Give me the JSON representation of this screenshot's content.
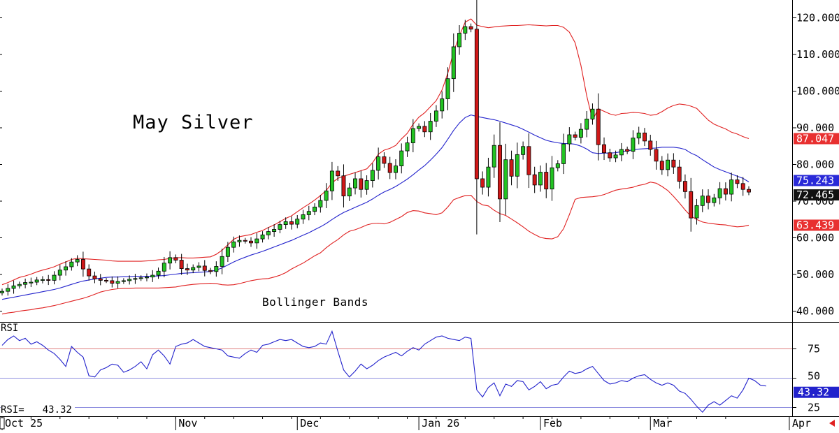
{
  "chart_data": [
    {
      "type": "candlestick",
      "title": "May Silver",
      "overlay_label": "Bollinger Bands",
      "ylim": [
        37,
        124
      ],
      "y_ticks": [
        "40.000",
        "50.000",
        "60.000",
        "70.000",
        "80.000",
        "90.000",
        "100.000",
        "110.000",
        "120.000"
      ],
      "x_ticks": [
        "Oct 25",
        "Nov",
        "Dec",
        "Jan 26",
        "Feb",
        "Mar",
        "Apr"
      ],
      "x_tick_index": [
        0,
        30,
        51,
        72,
        93,
        112,
        136
      ],
      "grid": false,
      "colors": {
        "up": "#22c322",
        "down": "#d01818",
        "upper_band": "#e02020",
        "lower_band": "#e02020",
        "middle_band": "#2222cc",
        "price_tag": "#111111"
      },
      "price_tags": {
        "upper_band": "87.047",
        "middle_band": "75.243",
        "last": "72.465",
        "lower_band": "63.439"
      },
      "series": [
        {
          "name": "Close",
          "values": [
            45.4,
            46.2,
            46.9,
            47.3,
            47.8,
            47.9,
            48.5,
            48.6,
            48.4,
            49.8,
            51.2,
            52.1,
            53.4,
            54.1,
            51.5,
            49.6,
            48.8,
            48.4,
            48.3,
            47.6,
            48.1,
            48.3,
            48.7,
            48.9,
            49.1,
            49.3,
            49.8,
            50.9,
            53.1,
            54.6,
            53.9,
            51.6,
            51.2,
            51.9,
            52.3,
            51.1,
            50.8,
            52.2,
            54.9,
            57.4,
            58.9,
            59.3,
            59.1,
            58.6,
            59.7,
            60.8,
            61.7,
            62.3,
            63.6,
            64.4,
            63.7,
            65.1,
            66.3,
            67.2,
            68.4,
            70.2,
            72.8,
            78.2,
            76.9,
            71.4,
            73.6,
            76.1,
            73.2,
            75.6,
            78.4,
            82.1,
            80.3,
            77.8,
            79.6,
            83.7,
            85.9,
            89.8,
            90.4,
            88.9,
            91.8,
            94.6,
            97.9,
            103.4,
            112.1,
            115.8,
            117.6,
            116.9,
            76.1,
            73.8,
            79.3,
            85.2,
            70.6,
            81.3,
            76.8,
            82.7,
            84.9,
            77.2,
            74.4,
            77.9,
            73.3,
            79.1,
            80.2,
            85.6,
            88.1,
            87.4,
            89.6,
            92.4,
            95.1,
            85.4,
            83.2,
            81.8,
            82.6,
            84.1,
            83.6,
            87.2,
            88.6,
            86.4,
            84.1,
            80.9,
            78.6,
            81.2,
            79.3,
            75.4,
            72.6,
            65.4,
            68.8,
            71.4,
            69.6,
            70.9,
            73.4,
            71.9,
            75.8,
            74.8,
            73.2,
            72.465
          ]
        },
        {
          "name": "Upper Band",
          "values": [
            47.2,
            47.8,
            48.5,
            49.2,
            49.6,
            50.1,
            50.7,
            51.2,
            51.6,
            52.1,
            52.8,
            53.4,
            54.1,
            54.4,
            54.3,
            54.2,
            54.1,
            54.0,
            53.9,
            53.7,
            53.6,
            53.6,
            53.6,
            53.6,
            53.6,
            53.7,
            53.8,
            54.0,
            54.1,
            54.4,
            54.6,
            54.6,
            54.5,
            54.5,
            54.6,
            54.7,
            54.8,
            55.5,
            56.6,
            58.1,
            59.6,
            60.3,
            60.6,
            60.9,
            61.5,
            62.0,
            62.8,
            63.5,
            64.4,
            65.3,
            66.0,
            67.1,
            68.2,
            69.2,
            70.3,
            71.5,
            72.9,
            75.0,
            76.2,
            76.8,
            77.3,
            77.8,
            78.3,
            78.8,
            80.5,
            82.8,
            83.9,
            84.4,
            85.2,
            87.0,
            88.5,
            91.0,
            92.9,
            94.1,
            95.8,
            97.4,
            100.3,
            104.9,
            110.7,
            115.1,
            118.8,
            119.7,
            118.0,
            117.6,
            117.3,
            117.5,
            117.7,
            117.8,
            117.9,
            117.9,
            118.0,
            118.1,
            118.0,
            117.9,
            117.8,
            117.9,
            117.9,
            117.4,
            116.1,
            113.2,
            107.0,
            98.7,
            92.1,
            95.2,
            94.5,
            93.8,
            93.4,
            93.9,
            94.0,
            94.2,
            94.1,
            93.9,
            93.4,
            93.6,
            94.4,
            95.4,
            96.1,
            96.5,
            96.3,
            95.9,
            95.3,
            93.7,
            92.1,
            91.0,
            90.3,
            89.7,
            88.8,
            88.3,
            87.6,
            87.047
          ]
        },
        {
          "name": "Middle Band",
          "values": [
            43.2,
            43.5,
            43.8,
            44.1,
            44.4,
            44.7,
            45.0,
            45.3,
            45.6,
            45.9,
            46.3,
            46.8,
            47.3,
            47.8,
            48.2,
            48.5,
            48.8,
            49.0,
            49.2,
            49.3,
            49.3,
            49.4,
            49.4,
            49.5,
            49.5,
            49.5,
            49.5,
            49.6,
            49.7,
            49.9,
            50.1,
            50.3,
            50.4,
            50.5,
            50.6,
            50.7,
            50.8,
            51.2,
            51.8,
            52.6,
            53.4,
            54.1,
            54.7,
            55.3,
            55.8,
            56.3,
            56.9,
            57.5,
            58.1,
            58.7,
            59.3,
            60.0,
            60.7,
            61.4,
            62.2,
            63.0,
            63.9,
            65.0,
            66.0,
            66.9,
            67.6,
            68.3,
            69.0,
            69.7,
            70.6,
            71.6,
            72.5,
            73.2,
            74.0,
            75.0,
            76.0,
            77.2,
            78.5,
            79.7,
            81.2,
            82.8,
            84.6,
            86.9,
            89.3,
            91.3,
            92.8,
            93.5,
            93.1,
            92.8,
            92.5,
            92.2,
            91.8,
            91.3,
            90.8,
            90.3,
            89.6,
            88.8,
            88.0,
            87.3,
            86.6,
            86.2,
            85.9,
            85.7,
            85.7,
            85.5,
            85.0,
            84.2,
            83.2,
            83.0,
            83.1,
            83.1,
            83.2,
            83.5,
            83.7,
            84.0,
            84.2,
            84.3,
            84.4,
            84.5,
            84.7,
            84.7,
            84.7,
            84.5,
            84.1,
            83.1,
            82.4,
            81.3,
            80.3,
            79.3,
            78.6,
            78.0,
            77.4,
            76.8,
            76.2,
            75.243
          ]
        },
        {
          "name": "Lower Band",
          "values": [
            39.2,
            39.5,
            39.7,
            40.0,
            40.2,
            40.4,
            40.7,
            40.9,
            41.2,
            41.5,
            41.9,
            42.3,
            42.7,
            43.1,
            43.5,
            44.0,
            44.6,
            45.2,
            45.6,
            45.9,
            46.1,
            46.2,
            46.2,
            46.3,
            46.3,
            46.3,
            46.3,
            46.3,
            46.4,
            46.5,
            46.6,
            46.9,
            47.1,
            47.3,
            47.4,
            47.5,
            47.6,
            47.5,
            47.2,
            47.1,
            47.2,
            47.5,
            47.9,
            48.3,
            48.6,
            48.8,
            48.9,
            49.3,
            49.8,
            50.5,
            51.5,
            52.3,
            53.1,
            54.1,
            55.1,
            55.9,
            57.3,
            58.5,
            59.5,
            60.8,
            61.8,
            62.2,
            62.8,
            63.5,
            63.9,
            64.0,
            63.8,
            64.2,
            65.0,
            65.8,
            66.9,
            67.4,
            67.3,
            66.8,
            66.6,
            66.3,
            66.8,
            68.4,
            70.4,
            71.0,
            71.5,
            71.6,
            69.9,
            69.0,
            68.7,
            67.5,
            66.6,
            66.1,
            65.1,
            64.1,
            63.0,
            61.8,
            60.9,
            60.1,
            59.8,
            59.7,
            60.3,
            62.5,
            66.3,
            70.5,
            71.0,
            71.1,
            71.2,
            71.4,
            71.8,
            72.4,
            73.0,
            73.3,
            73.5,
            73.8,
            74.3,
            74.6,
            75.2,
            74.9,
            74.0,
            72.9,
            71.3,
            69.5,
            67.6,
            65.9,
            65.0,
            64.3,
            64.0,
            63.8,
            63.6,
            63.5,
            63.2,
            63.0,
            63.1,
            63.439
          ]
        }
      ]
    },
    {
      "type": "line",
      "title": "RSI",
      "ylim": [
        15,
        100
      ],
      "y_ticks": [
        "25",
        "50",
        "75"
      ],
      "reference_lines": {
        "overbought": 75,
        "mid": 50,
        "oversold": 25
      },
      "readout_label": "RSI=",
      "readout_value": "43.32",
      "last_tag": "43.32",
      "colors": {
        "line": "#2222cc",
        "overbought": "#e08080",
        "mid": "#9090e0",
        "oversold": "#9090e0",
        "tag": "#2222cc"
      },
      "series": [
        {
          "name": "RSI",
          "values": [
            78,
            83,
            86,
            82,
            84,
            79,
            81,
            78,
            74,
            71,
            66,
            60,
            77,
            72,
            68,
            52,
            51,
            57,
            59,
            62,
            61,
            55,
            57,
            60,
            64,
            58,
            70,
            74,
            69,
            62,
            77,
            79,
            80,
            83,
            80,
            77,
            76,
            75,
            74,
            69,
            68,
            67,
            71,
            74,
            72,
            78,
            79,
            81,
            83,
            82,
            83,
            80,
            77,
            76,
            77,
            80,
            79,
            90,
            73,
            57,
            51,
            56,
            62,
            58,
            61,
            65,
            68,
            70,
            72,
            69,
            73,
            76,
            74,
            79,
            82,
            85,
            86,
            84,
            83,
            82,
            85,
            84,
            40,
            34,
            42,
            46,
            35,
            45,
            43,
            48,
            47,
            40,
            43,
            47,
            41,
            44,
            45,
            51,
            56,
            54,
            55,
            58,
            60,
            54,
            48,
            45,
            46,
            48,
            47,
            50,
            52,
            53,
            49,
            46,
            44,
            46,
            44,
            39,
            37,
            32,
            26,
            21,
            27,
            30,
            27,
            31,
            35,
            33,
            40,
            50,
            48,
            44,
            43.32
          ]
        }
      ]
    }
  ]
}
